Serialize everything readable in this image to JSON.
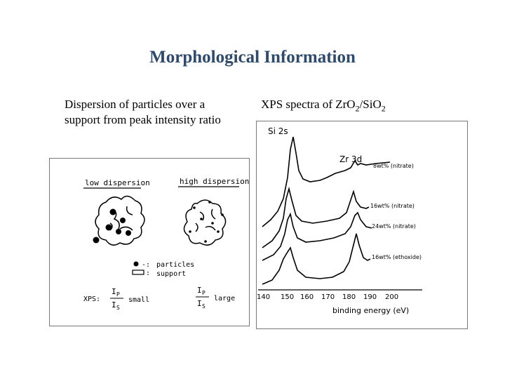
{
  "slide": {
    "title": "Morphological Information",
    "left_caption": "Dispersion of particles over a support from peak intensity ratio",
    "right_caption": {
      "prefix": "XPS spectra of Zr",
      "o1": "O",
      "sub1": "2",
      "slash": "/Si",
      "o2": "O",
      "sub2": "2"
    }
  },
  "dispersion_figure": {
    "low_label": "low dispersion",
    "high_label": "high dispersion",
    "legend_particles": "particles",
    "legend_support": "support",
    "xps_label": "XPS:",
    "ratio_num": "I",
    "ratio_num_sub": "P",
    "ratio_den": "I",
    "ratio_den_sub": "S",
    "low_result": "small",
    "high_result": "large"
  },
  "xps_figure": {
    "peak_si": "Si 2s",
    "peak_zr": "Zr 3d",
    "traces": [
      "8wt% (nitrate)",
      "16wt% (nitrate)",
      "24wt% (nitrate)",
      "16wt% (ethoxide)"
    ],
    "x_ticks": [
      "140",
      "150",
      "160",
      "170",
      "180",
      "190",
      "200"
    ],
    "x_label": "binding energy (eV)"
  }
}
